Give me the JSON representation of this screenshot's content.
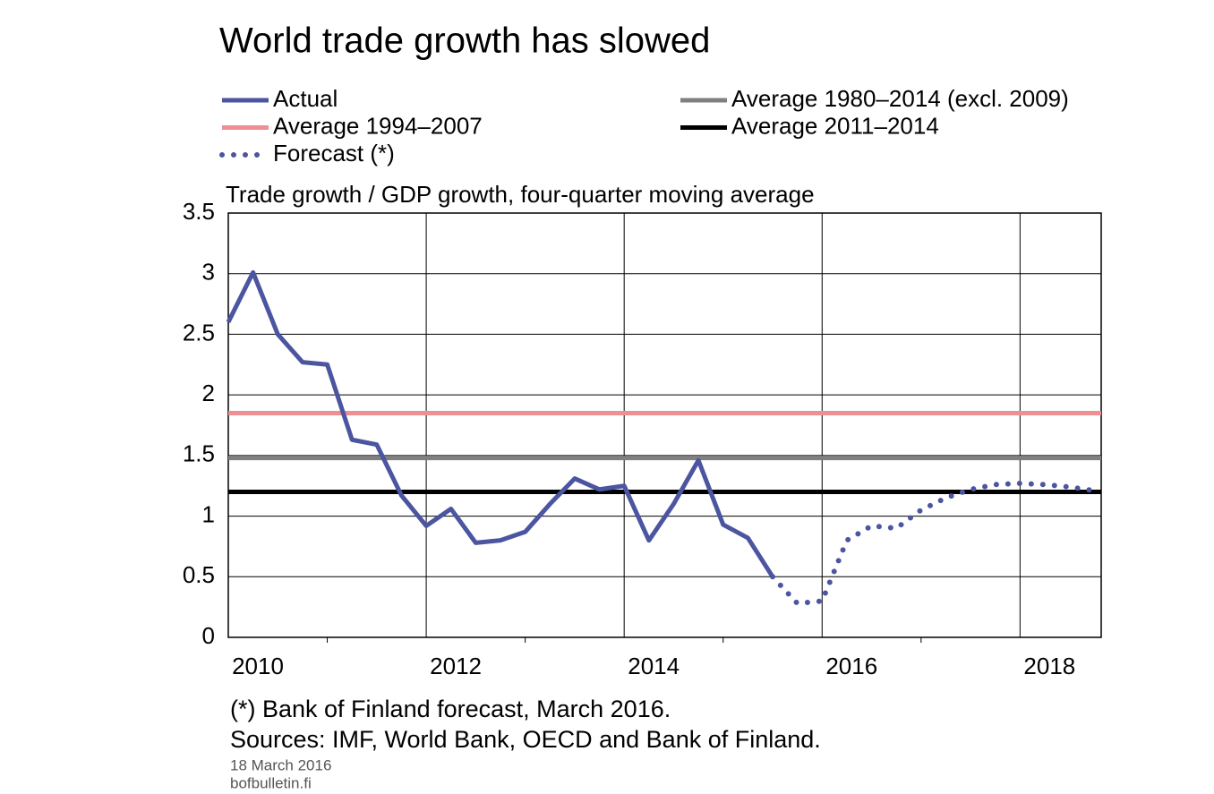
{
  "chart_data": {
    "type": "line",
    "title": "World trade growth has slowed",
    "subtitle": "Trade growth / GDP growth, four-quarter moving average",
    "x": [
      2010,
      2010.25,
      2010.5,
      2010.75,
      2011,
      2011.25,
      2011.5,
      2011.75,
      2012,
      2012.25,
      2012.5,
      2012.75,
      2013,
      2013.25,
      2013.5,
      2013.75,
      2014,
      2014.25,
      2014.5,
      2014.75,
      2015,
      2015.25,
      2015.5,
      2015.75,
      2016,
      2016.25,
      2016.5,
      2016.75,
      2017,
      2017.25,
      2017.5,
      2017.75,
      2018,
      2018.25,
      2018.5,
      2018.75
    ],
    "series": [
      {
        "name": "Actual",
        "color": "#4b55a0",
        "values": [
          2.6,
          3.01,
          2.5,
          2.27,
          2.25,
          1.63,
          1.59,
          1.17,
          0.92,
          1.06,
          0.78,
          0.8,
          0.87,
          1.1,
          1.31,
          1.22,
          1.25,
          0.8,
          1.1,
          1.46,
          0.93,
          0.82,
          0.5,
          null,
          null,
          null,
          null,
          null,
          null,
          null,
          null,
          null,
          null,
          null,
          null,
          null
        ]
      },
      {
        "name": "Average 1980–2014 (excl. 2009)",
        "color": "#808080",
        "value": 1.48
      },
      {
        "name": "Average 1994–2007",
        "color": "#ee8f94",
        "value": 1.85
      },
      {
        "name": "Average 2011–2014",
        "color": "#000000",
        "value": 1.2
      },
      {
        "name": "Forecast (*)",
        "color": "#4b55a0",
        "dash": "dotted",
        "values": [
          null,
          null,
          null,
          null,
          null,
          null,
          null,
          null,
          null,
          null,
          null,
          null,
          null,
          null,
          null,
          null,
          null,
          null,
          null,
          null,
          null,
          null,
          0.5,
          0.28,
          0.3,
          0.8,
          0.92,
          0.9,
          1.05,
          1.15,
          1.22,
          1.26,
          1.27,
          1.26,
          1.24,
          1.21
        ]
      }
    ],
    "xlim": [
      2010,
      2018.82
    ],
    "xticks": [
      2010,
      2012,
      2014,
      2016,
      2018
    ],
    "xminorticks": [
      2011,
      2013,
      2015,
      2017
    ],
    "ylim": [
      0,
      3.5
    ],
    "yticks": [
      0,
      0.5,
      1,
      1.5,
      2,
      2.5,
      3,
      3.5
    ],
    "grid": true,
    "notes": [
      "(*) Bank of Finland forecast, March 2016.",
      "Sources: IMF, World Bank, OECD and Bank of Finland."
    ],
    "date": "18 March 2016",
    "site": "bofbulletin.fi"
  }
}
